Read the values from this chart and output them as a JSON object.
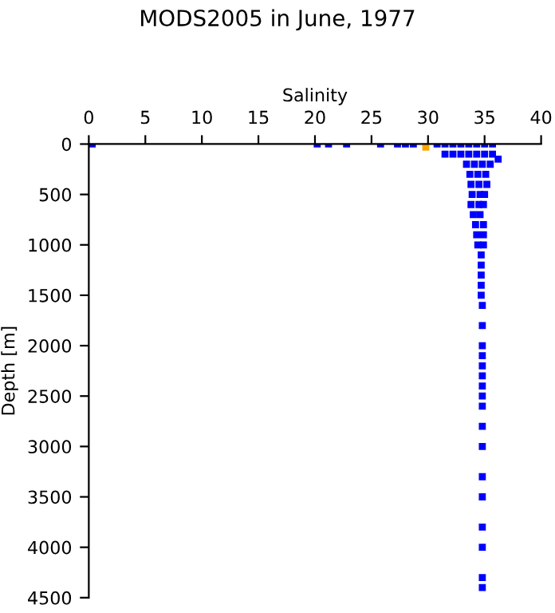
{
  "chart_data": {
    "type": "scatter",
    "title": "MODS2005 in June, 1977",
    "xlabel": "Salinity",
    "ylabel": "Depth [m]",
    "xlim": [
      0,
      40
    ],
    "xticks": [
      0,
      5,
      10,
      15,
      20,
      25,
      30,
      35,
      40
    ],
    "ylim": [
      4500,
      0
    ],
    "yticks": [
      0,
      500,
      1000,
      1500,
      2000,
      2500,
      3000,
      3500,
      4000,
      4500
    ],
    "marker": "square",
    "grid": false,
    "legend": false,
    "series": [
      {
        "color": "#0000ff",
        "x": [
          0.3,
          20.2,
          21.2,
          22.8,
          25.8,
          27.3,
          28.0,
          28.7,
          30.8,
          31.5,
          32.2,
          32.9,
          33.6,
          34.3,
          35.0,
          35.7,
          31.5,
          32.2,
          32.9,
          33.6,
          34.3,
          35.0,
          35.7,
          33.4,
          34.1,
          34.8,
          35.5,
          36.2,
          33.7,
          34.4,
          35.1,
          33.8,
          34.5,
          35.2,
          33.9,
          34.6,
          35.0,
          33.8,
          34.5,
          34.9,
          34.0,
          34.6,
          34.2,
          34.9,
          34.3,
          34.9,
          34.4,
          34.9,
          34.7,
          34.7,
          34.7,
          34.7,
          34.7,
          34.8,
          34.8,
          34.8,
          34.8,
          34.8,
          34.8,
          34.8,
          34.8,
          34.8,
          34.8,
          34.8,
          34.8,
          34.8,
          34.8,
          34.8,
          34.8,
          34.8
        ],
        "values": [
          0,
          0,
          0,
          0,
          0,
          0,
          0,
          0,
          0,
          0,
          0,
          0,
          0,
          0,
          0,
          0,
          100,
          100,
          100,
          100,
          100,
          100,
          100,
          200,
          200,
          200,
          200,
          150,
          300,
          300,
          300,
          400,
          400,
          400,
          500,
          500,
          500,
          600,
          600,
          600,
          700,
          700,
          800,
          800,
          900,
          900,
          1000,
          1000,
          1100,
          1200,
          1300,
          1400,
          1500,
          1600,
          1800,
          2000,
          2100,
          2200,
          2300,
          2400,
          2500,
          2600,
          2800,
          3000,
          3300,
          3500,
          3800,
          4000,
          4300,
          4400
        ]
      },
      {
        "color": "#ffa500",
        "x": [
          29.8
        ],
        "values": [
          30
        ]
      }
    ]
  }
}
